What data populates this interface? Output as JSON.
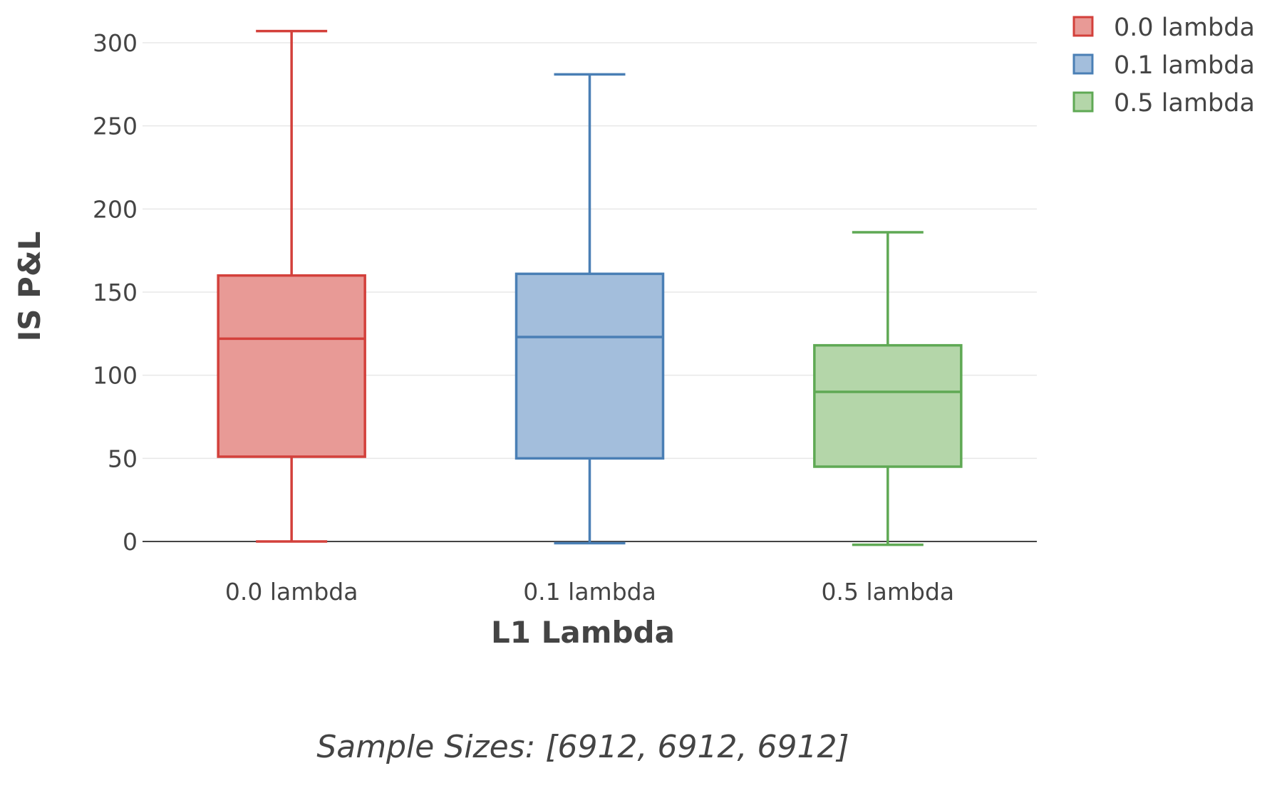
{
  "chart_data": {
    "type": "box",
    "categories": [
      "0.0 lambda",
      "0.1 lambda",
      "0.5 lambda"
    ],
    "series": [
      {
        "name": "0.0 lambda",
        "category": "0.0 lambda",
        "whisker_low": 0,
        "q1": 51,
        "median": 122,
        "q3": 160,
        "whisker_high": 307,
        "color": "#d3403b",
        "fill": "#e89a96"
      },
      {
        "name": "0.1 lambda",
        "category": "0.1 lambda",
        "whisker_low": -1,
        "q1": 50,
        "median": 123,
        "q3": 161,
        "whisker_high": 281,
        "color": "#4a7fb5",
        "fill": "#a3bedc"
      },
      {
        "name": "0.5 lambda",
        "category": "0.5 lambda",
        "whisker_low": -2,
        "q1": 45,
        "median": 90,
        "q3": 118,
        "whisker_high": 186,
        "color": "#5fa954",
        "fill": "#b4d6a9"
      }
    ],
    "xlabel": "L1 Lambda",
    "ylabel": "IS P&L",
    "ylim": [
      -12,
      315
    ],
    "yticks": [
      0,
      50,
      100,
      150,
      200,
      250,
      300
    ],
    "grid": true,
    "legend_position": "top-right",
    "footer": "Sample Sizes: [6912, 6912, 6912]"
  }
}
